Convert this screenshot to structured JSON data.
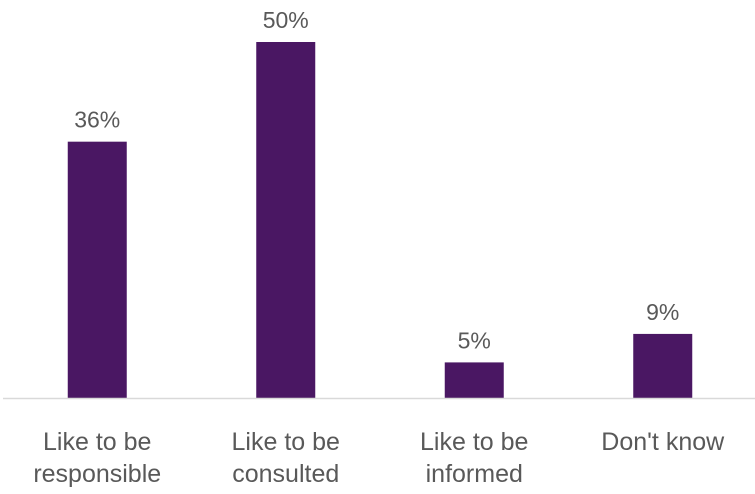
{
  "chart_data": {
    "type": "bar",
    "categories": [
      [
        "Like to be",
        "responsible"
      ],
      [
        "Like to be",
        "consulted"
      ],
      [
        "Like to be",
        "informed"
      ],
      [
        "Don't know"
      ]
    ],
    "values": [
      36,
      50,
      5,
      9
    ],
    "data_labels": [
      "36%",
      "50%",
      "5%",
      "9%"
    ],
    "title": "",
    "xlabel": "",
    "ylabel": "",
    "ylim": [
      0,
      55
    ],
    "grid": false,
    "legend": "none",
    "bar_color": "#4a1763"
  }
}
